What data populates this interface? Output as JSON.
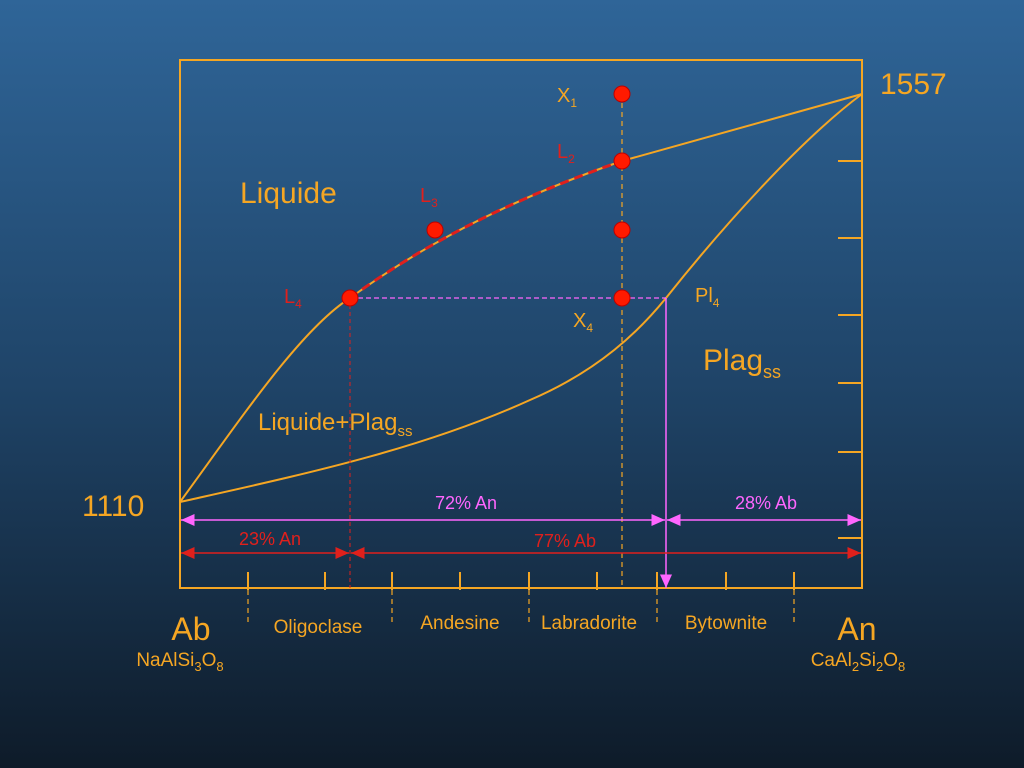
{
  "axis": {
    "top_temperature": "1557",
    "bottom_temperature": "1110"
  },
  "fields": {
    "liquid": "Liquide",
    "solid": {
      "base": "Plag",
      "sub": "ss"
    },
    "two_phase": {
      "base": "Liquide+Plag",
      "sub": "ss"
    }
  },
  "points": [
    {
      "base": "X",
      "sub": "1"
    },
    {
      "base": "L",
      "sub": "2"
    },
    {
      "base": "L",
      "sub": "3"
    },
    {
      "base": "L",
      "sub": "4"
    },
    {
      "base": "X",
      "sub": "4"
    },
    {
      "base": "Pl",
      "sub": "4"
    }
  ],
  "levers": {
    "upper_left": "72% An",
    "upper_right": "28% Ab",
    "lower_left": "23% An",
    "lower_right": "77% Ab"
  },
  "minerals": [
    "Oligoclase",
    "Andesine",
    "Labradorite",
    "Bytownite"
  ],
  "endmembers": [
    {
      "name": "Ab",
      "formula": [
        "NaAlSi",
        "3",
        "O",
        "8"
      ]
    },
    {
      "name": "An",
      "formula": [
        "CaAl",
        "2",
        "Si",
        "2",
        "O",
        "8"
      ]
    }
  ]
}
